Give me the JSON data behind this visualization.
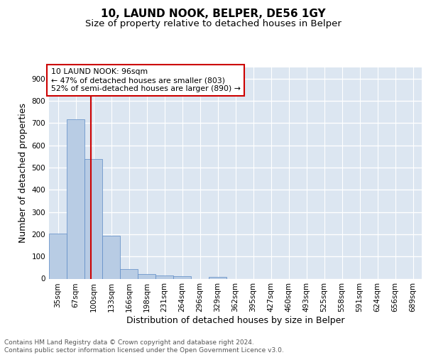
{
  "title1": "10, LAUND NOOK, BELPER, DE56 1GY",
  "title2": "Size of property relative to detached houses in Belper",
  "xlabel": "Distribution of detached houses by size in Belper",
  "ylabel": "Number of detached properties",
  "categories": [
    "35sqm",
    "67sqm",
    "100sqm",
    "133sqm",
    "166sqm",
    "198sqm",
    "231sqm",
    "264sqm",
    "296sqm",
    "329sqm",
    "362sqm",
    "395sqm",
    "427sqm",
    "460sqm",
    "493sqm",
    "525sqm",
    "558sqm",
    "591sqm",
    "624sqm",
    "656sqm",
    "689sqm"
  ],
  "values": [
    203,
    718,
    538,
    192,
    44,
    22,
    14,
    12,
    0,
    8,
    0,
    0,
    0,
    0,
    0,
    0,
    0,
    0,
    0,
    0,
    0
  ],
  "bar_color": "#b8cce4",
  "bar_edge_color": "#5b8ac5",
  "bg_color": "#dce6f1",
  "grid_color": "#ffffff",
  "vline_color": "#cc0000",
  "annotation_text": "10 LAUND NOOK: 96sqm\n← 47% of detached houses are smaller (803)\n52% of semi-detached houses are larger (890) →",
  "annotation_box_color": "#ffffff",
  "annotation_box_edge": "#cc0000",
  "ylim": [
    0,
    950
  ],
  "yticks": [
    0,
    100,
    200,
    300,
    400,
    500,
    600,
    700,
    800,
    900
  ],
  "footer": "Contains HM Land Registry data © Crown copyright and database right 2024.\nContains public sector information licensed under the Open Government Licence v3.0.",
  "title1_fontsize": 11,
  "title2_fontsize": 9.5,
  "tick_fontsize": 7.5,
  "label_fontsize": 9,
  "footer_fontsize": 6.5
}
